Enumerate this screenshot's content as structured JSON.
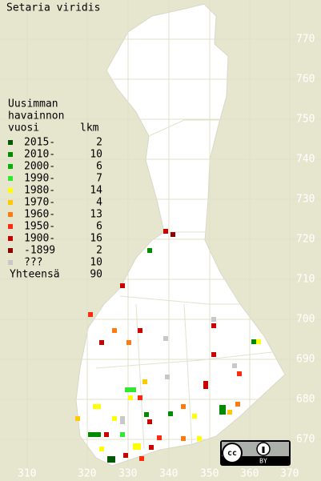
{
  "title": "Setaria viridis",
  "legend": {
    "heading": [
      "Uusimman",
      "havainnon",
      "vuosi"
    ],
    "count_heading": "lkm",
    "rows": [
      {
        "label": "2015-",
        "count": 2,
        "color": "#005a00"
      },
      {
        "label": "2010-",
        "count": 10,
        "color": "#008a00"
      },
      {
        "label": "2000-",
        "count": 6,
        "color": "#00b400"
      },
      {
        "label": "1990-",
        "count": 7,
        "color": "#30e830"
      },
      {
        "label": "1980-",
        "count": 14,
        "color": "#ffff00"
      },
      {
        "label": "1970-",
        "count": 4,
        "color": "#ffc800"
      },
      {
        "label": "1960-",
        "count": 13,
        "color": "#ff7a10"
      },
      {
        "label": "1950-",
        "count": 6,
        "color": "#ff2a10"
      },
      {
        "label": "1900-",
        "count": 16,
        "color": "#c80000"
      },
      {
        "label": "-1899",
        "count": 2,
        "color": "#8c0000"
      },
      {
        "label": "???",
        "count": 10,
        "color": "#c8c8c8"
      }
    ],
    "total": {
      "label": "Yhteensä",
      "count": 90
    }
  },
  "y_labels": [
    "770",
    "760",
    "750",
    "740",
    "730",
    "720",
    "710",
    "700",
    "690",
    "680",
    "670"
  ],
  "x_labels": [
    "310",
    "320",
    "330",
    "340",
    "350",
    "360",
    "370"
  ],
  "badge": "BY"
}
